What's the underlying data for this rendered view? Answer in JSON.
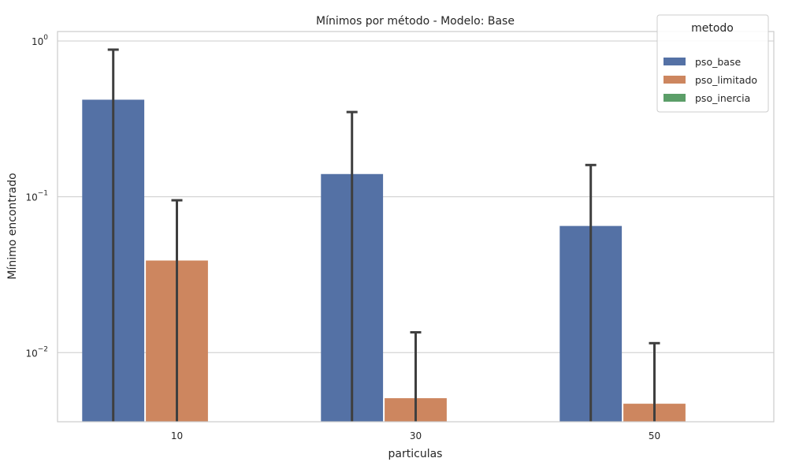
{
  "chart_data": {
    "type": "bar",
    "title": "Mínimos por método - Modelo: Base",
    "xlabel": "particulas",
    "ylabel": "Mínimo encontrado",
    "yscale": "log",
    "ylim": [
      0.0036,
      1.15
    ],
    "yticks": [
      {
        "value": 1,
        "base": "10",
        "exp": "0"
      },
      {
        "value": 0.1,
        "base": "10",
        "exp": "−1"
      },
      {
        "value": 0.01,
        "base": "10",
        "exp": "−2"
      }
    ],
    "grid": true,
    "categories": [
      "10",
      "30",
      "50"
    ],
    "series": [
      {
        "name": "pso_base",
        "color": "#5471a5",
        "values": [
          0.42,
          0.14,
          0.065
        ],
        "error_upper": [
          0.88,
          0.35,
          0.16
        ]
      },
      {
        "name": "pso_limitado",
        "color": "#cd865f",
        "values": [
          0.039,
          0.0051,
          0.0047
        ],
        "error_upper": [
          0.095,
          0.0135,
          0.0115
        ]
      },
      {
        "name": "pso_inercia",
        "color": "#5b9e68",
        "values": [
          null,
          null,
          null
        ],
        "error_upper": [
          null,
          null,
          null
        ]
      }
    ],
    "legend": {
      "title": "metodo",
      "position": "top-right"
    }
  }
}
